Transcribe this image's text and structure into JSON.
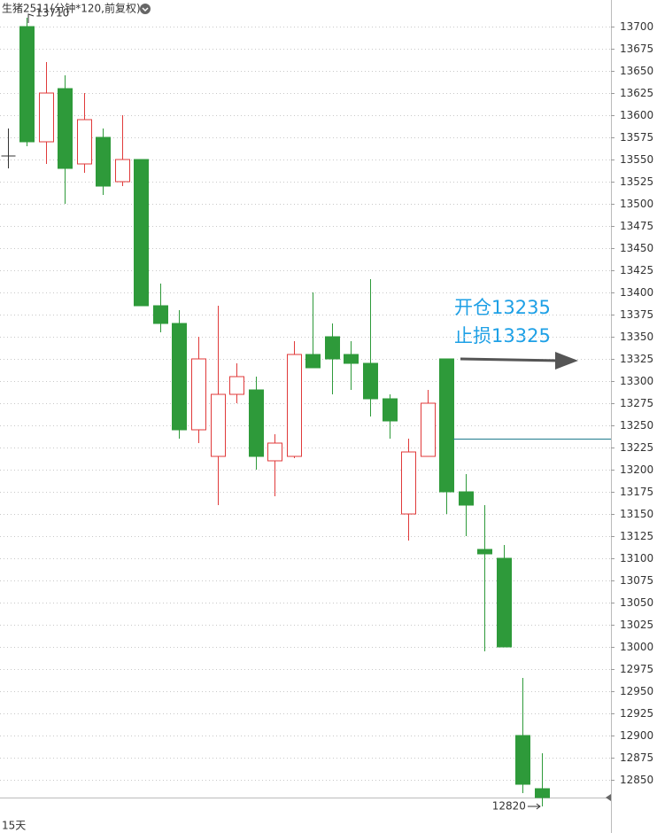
{
  "chart_data": {
    "type": "candlestick",
    "title": "生猪2511(分钟*120,前复权)",
    "open": [
      13554,
      13700,
      13570,
      13630,
      13545,
      13575,
      13525,
      13550,
      13385,
      13365,
      13245,
      13215,
      13285,
      13290,
      13210,
      13215,
      13330,
      13350,
      13330,
      13320,
      13280,
      13150,
      13215,
      13325,
      13175,
      13110,
      13100,
      12900,
      12840
    ],
    "high": [
      13585,
      13710,
      13660,
      13645,
      13625,
      13585,
      13600,
      13550,
      13410,
      13380,
      13350,
      13385,
      13320,
      13305,
      13240,
      13345,
      13400,
      13365,
      13345,
      13415,
      13285,
      13235,
      13290,
      13325,
      13195,
      13160,
      13115,
      12965,
      12880
    ],
    "low": [
      13540,
      13565,
      13545,
      13500,
      13535,
      13510,
      13520,
      13385,
      13355,
      13235,
      13230,
      13160,
      13275,
      13200,
      13170,
      13213,
      13315,
      13285,
      13290,
      13260,
      13235,
      13120,
      13215,
      13150,
      13125,
      12995,
      13000,
      12835,
      12820
    ],
    "close": [
      13554,
      13570,
      13625,
      13540,
      13595,
      13520,
      13550,
      13385,
      13365,
      13245,
      13325,
      13285,
      13305,
      13215,
      13230,
      13330,
      13315,
      13325,
      13320,
      13280,
      13255,
      13220,
      13275,
      13175,
      13160,
      13105,
      13000,
      12845,
      12830
    ],
    "up_color": "#e03a3a",
    "down_color": "#2e9a3a",
    "ylim": [
      12830,
      13730
    ],
    "yticks": [
      12850,
      12875,
      12900,
      12925,
      12950,
      12975,
      13000,
      13025,
      13050,
      13075,
      13100,
      13125,
      13150,
      13175,
      13200,
      13225,
      13250,
      13275,
      13300,
      13325,
      13350,
      13375,
      13400,
      13425,
      13450,
      13475,
      13500,
      13525,
      13550,
      13575,
      13600,
      13625,
      13650,
      13675,
      13700
    ],
    "grid": true,
    "max_label": "13710",
    "min_label": "12820",
    "entry_label": "开仓13235",
    "stop_label": "止损13325",
    "entry_price": 13235,
    "stop_price": 13325,
    "period": "15天"
  }
}
